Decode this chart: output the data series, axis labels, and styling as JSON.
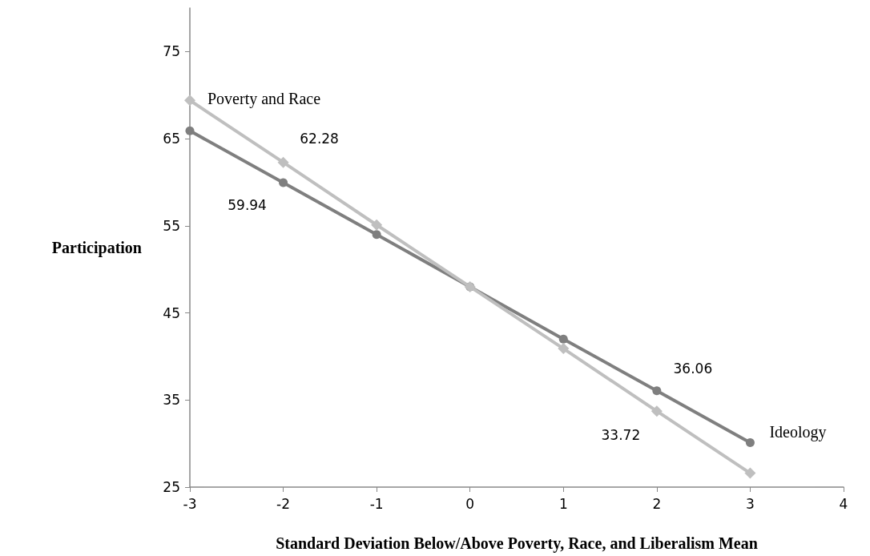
{
  "chart_data": {
    "type": "line",
    "xlabel": "Standard Deviation Below/Above Poverty, Race, and Liberalism Mean",
    "ylabel": "Participation",
    "x": [
      -3,
      -2,
      -1,
      0,
      1,
      2,
      3
    ],
    "series": [
      {
        "color": "#7f7f7f",
        "marker": "circle",
        "values": [
          65.9,
          59.94,
          54,
          48,
          42,
          36.06,
          30.1
        ],
        "value_labels": [
          null,
          "59.94",
          null,
          null,
          null,
          "36.06",
          null
        ]
      },
      {
        "color": "#bfbfbf",
        "marker": "diamond",
        "values": [
          69.4,
          62.28,
          55.1,
          48,
          40.9,
          33.72,
          26.6
        ],
        "value_labels": [
          null,
          "62.28",
          null,
          null,
          null,
          "33.72",
          null
        ]
      }
    ],
    "annotations": [
      {
        "text": "Poverty and Race",
        "x": -3,
        "y": 69.4
      },
      {
        "text": "Ideology",
        "x": 3,
        "y": 30.1
      }
    ],
    "xlim": [
      -3,
      4
    ],
    "xticks": [
      -3,
      -2,
      -1,
      0,
      1,
      2,
      3,
      4
    ],
    "ylim": [
      25,
      80
    ],
    "yticks": [
      25,
      35,
      45,
      55,
      65,
      75
    ],
    "grid": false
  }
}
